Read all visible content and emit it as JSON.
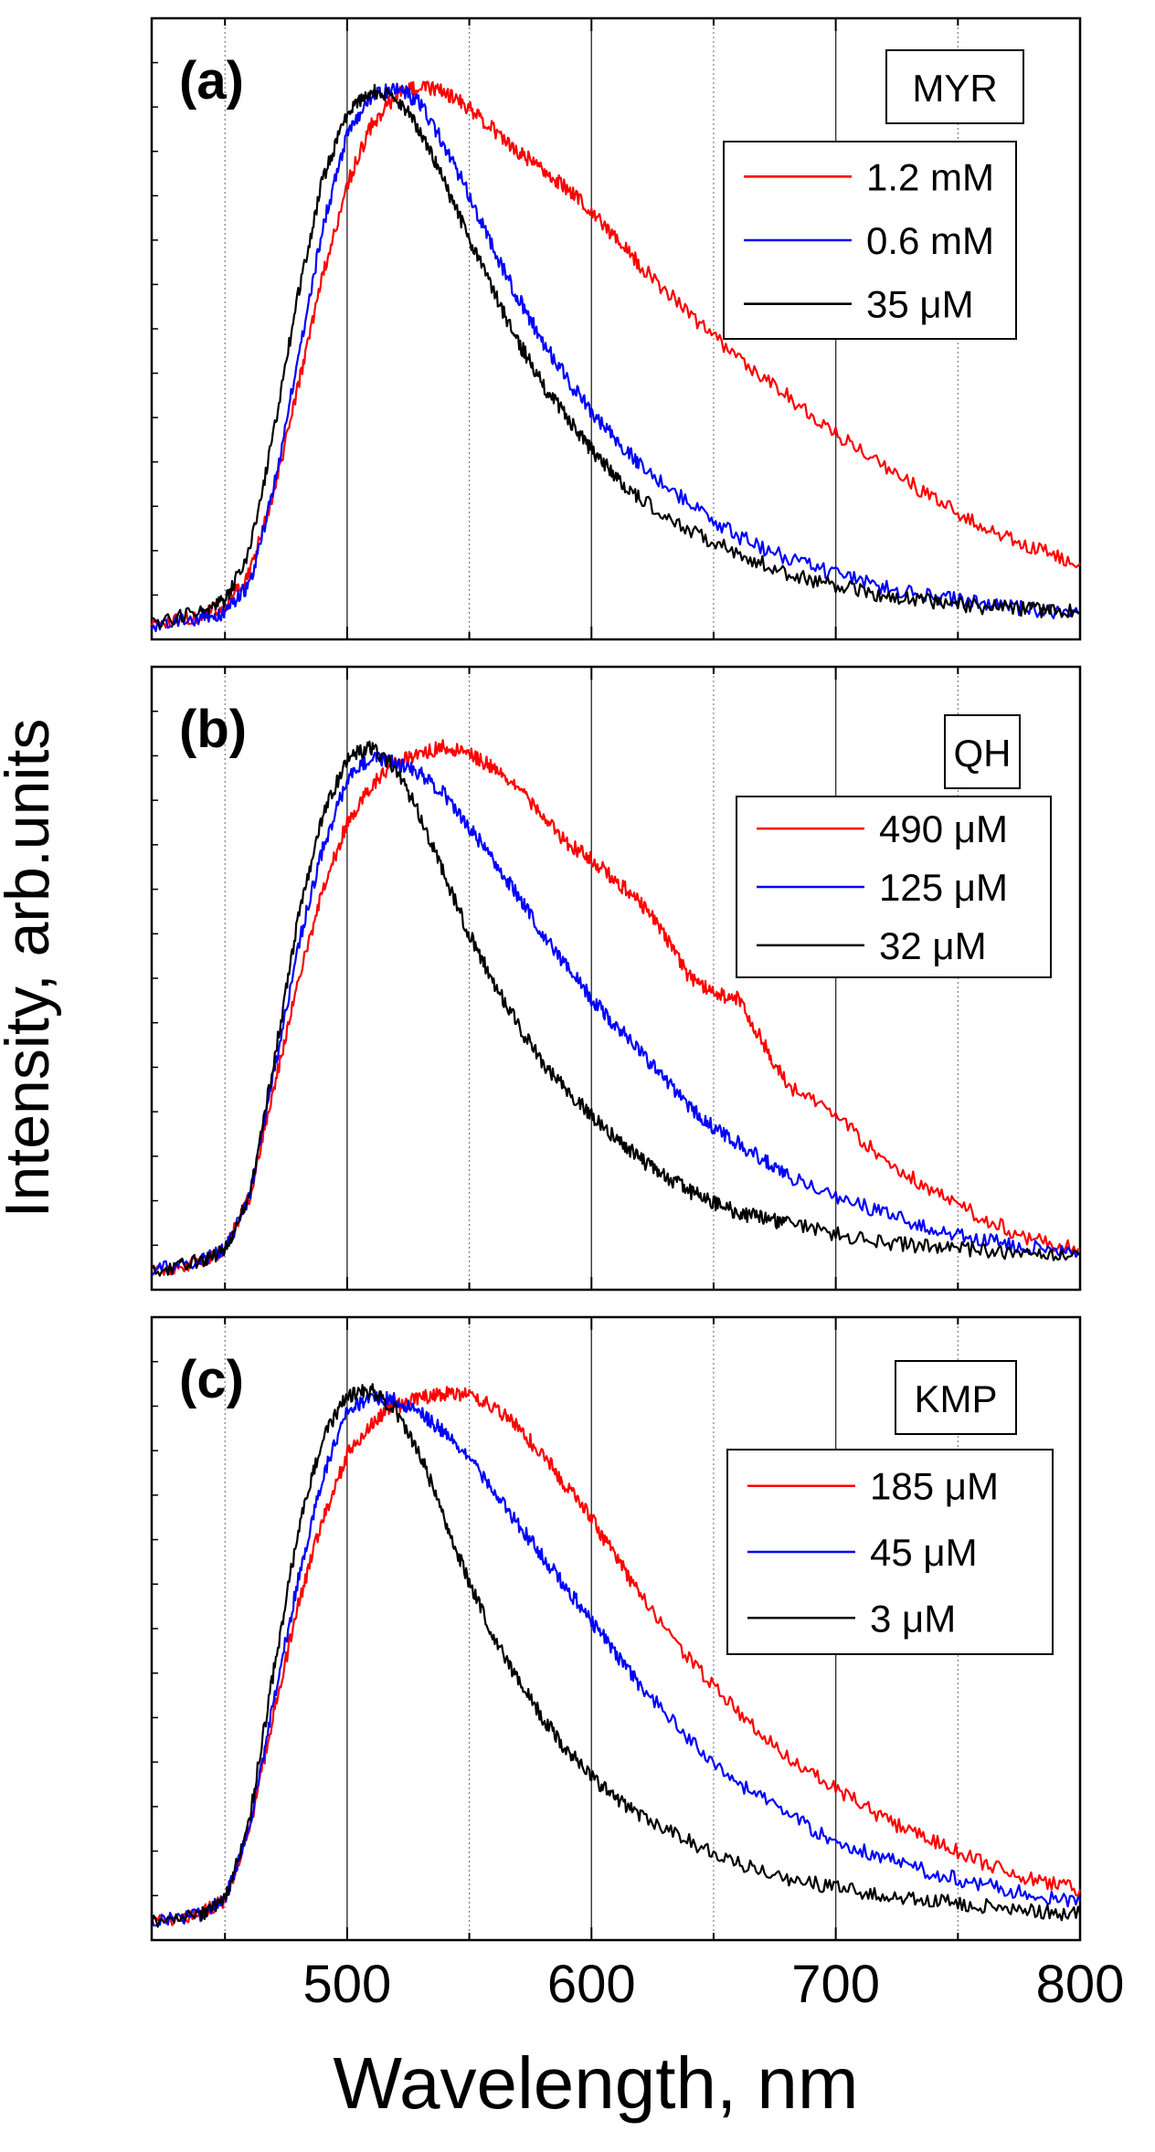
{
  "figure": {
    "ylabel": "Intensity, arb.units",
    "xlabel": "Wavelength, nm"
  },
  "chart_data": [
    {
      "type": "line",
      "panel_label": "(a)",
      "compound": "MYR",
      "xlim": [
        420,
        800
      ],
      "x_ticks": [
        500,
        600,
        700,
        800
      ],
      "grid": "vertical lines at 450, 500, 550, 600, 650, 700, 750",
      "legend_position": "upper-right",
      "x": [
        420,
        440,
        450,
        460,
        470,
        480,
        490,
        500,
        510,
        520,
        530,
        540,
        550,
        560,
        570,
        580,
        590,
        600,
        610,
        620,
        640,
        660,
        680,
        700,
        720,
        740,
        760,
        780,
        800
      ],
      "series": [
        {
          "name": "1.2 mM",
          "color": "#ff0000",
          "values": [
            0.01,
            0.025,
            0.04,
            0.1,
            0.25,
            0.45,
            0.65,
            0.82,
            0.93,
            0.985,
            1.0,
            0.99,
            0.96,
            0.92,
            0.88,
            0.85,
            0.81,
            0.77,
            0.72,
            0.67,
            0.58,
            0.5,
            0.43,
            0.36,
            0.3,
            0.24,
            0.19,
            0.15,
            0.12
          ]
        },
        {
          "name": "0.6 mM",
          "color": "#0000ff",
          "values": [
            0.005,
            0.02,
            0.03,
            0.08,
            0.26,
            0.5,
            0.74,
            0.91,
            0.98,
            1.0,
            0.97,
            0.89,
            0.8,
            0.7,
            0.61,
            0.53,
            0.46,
            0.4,
            0.35,
            0.3,
            0.23,
            0.17,
            0.13,
            0.1,
            0.075,
            0.06,
            0.045,
            0.035,
            0.03
          ]
        },
        {
          "name": "35 μM",
          "color": "#000000",
          "values": [
            0.01,
            0.03,
            0.05,
            0.14,
            0.36,
            0.62,
            0.83,
            0.95,
            0.995,
            0.98,
            0.92,
            0.82,
            0.72,
            0.62,
            0.53,
            0.45,
            0.39,
            0.33,
            0.28,
            0.24,
            0.18,
            0.14,
            0.1,
            0.08,
            0.06,
            0.05,
            0.04,
            0.035,
            0.03
          ]
        }
      ]
    },
    {
      "type": "line",
      "panel_label": "(b)",
      "compound": "QH",
      "xlim": [
        420,
        800
      ],
      "x_ticks": [
        500,
        600,
        700,
        800
      ],
      "grid": "vertical lines at 450, 500, 550, 600, 650, 700, 750",
      "legend_position": "upper-right",
      "x": [
        420,
        440,
        450,
        460,
        470,
        480,
        490,
        500,
        510,
        520,
        530,
        540,
        550,
        560,
        570,
        580,
        590,
        600,
        610,
        620,
        630,
        640,
        650,
        660,
        670,
        680,
        700,
        720,
        740,
        760,
        780,
        800
      ],
      "series": [
        {
          "name": "490 μM",
          "color": "#ff0000",
          "values": [
            0.01,
            0.03,
            0.05,
            0.15,
            0.35,
            0.56,
            0.72,
            0.85,
            0.92,
            0.96,
            0.98,
            0.99,
            0.98,
            0.95,
            0.91,
            0.86,
            0.81,
            0.78,
            0.74,
            0.7,
            0.64,
            0.56,
            0.53,
            0.52,
            0.44,
            0.36,
            0.3,
            0.22,
            0.16,
            0.11,
            0.07,
            0.05
          ]
        },
        {
          "name": "125 μM",
          "color": "#0000ff",
          "values": [
            0.01,
            0.03,
            0.05,
            0.15,
            0.38,
            0.62,
            0.8,
            0.93,
            0.97,
            0.96,
            0.94,
            0.9,
            0.84,
            0.78,
            0.71,
            0.64,
            0.58,
            0.52,
            0.47,
            0.42,
            0.37,
            0.32,
            0.28,
            0.25,
            0.22,
            0.19,
            0.15,
            0.12,
            0.09,
            0.07,
            0.055,
            0.045
          ]
        },
        {
          "name": "32 μM",
          "color": "#000000",
          "values": [
            0.01,
            0.03,
            0.05,
            0.15,
            0.4,
            0.67,
            0.86,
            0.97,
            0.99,
            0.95,
            0.86,
            0.75,
            0.64,
            0.55,
            0.47,
            0.4,
            0.35,
            0.3,
            0.26,
            0.22,
            0.19,
            0.16,
            0.14,
            0.12,
            0.11,
            0.1,
            0.08,
            0.065,
            0.055,
            0.05,
            0.045,
            0.04
          ]
        }
      ]
    },
    {
      "type": "line",
      "panel_label": "(c)",
      "compound": "KMP",
      "xlim": [
        420,
        800
      ],
      "x_ticks": [
        500,
        600,
        700,
        800
      ],
      "grid": "vertical lines at 450, 500, 550, 600, 650, 700, 750",
      "legend_position": "upper-right",
      "x": [
        420,
        440,
        450,
        460,
        470,
        480,
        490,
        500,
        510,
        520,
        530,
        540,
        550,
        560,
        570,
        580,
        590,
        600,
        610,
        620,
        640,
        660,
        680,
        700,
        720,
        740,
        760,
        780,
        800
      ],
      "series": [
        {
          "name": "185 μM",
          "color": "#ff0000",
          "values": [
            0.01,
            0.025,
            0.05,
            0.18,
            0.4,
            0.6,
            0.76,
            0.88,
            0.94,
            0.97,
            0.985,
            0.995,
            0.99,
            0.97,
            0.93,
            0.88,
            0.82,
            0.76,
            0.69,
            0.62,
            0.5,
            0.4,
            0.32,
            0.26,
            0.2,
            0.16,
            0.12,
            0.09,
            0.07
          ]
        },
        {
          "name": "45 μM",
          "color": "#0000ff",
          "values": [
            0.01,
            0.025,
            0.05,
            0.19,
            0.42,
            0.65,
            0.84,
            0.96,
            0.99,
            0.98,
            0.96,
            0.92,
            0.87,
            0.81,
            0.75,
            0.69,
            0.63,
            0.57,
            0.51,
            0.45,
            0.35,
            0.27,
            0.21,
            0.16,
            0.13,
            0.1,
            0.08,
            0.06,
            0.05
          ]
        },
        {
          "name": "3 μM",
          "color": "#000000",
          "values": [
            0.01,
            0.025,
            0.05,
            0.2,
            0.48,
            0.74,
            0.91,
            0.99,
            1.0,
            0.96,
            0.88,
            0.76,
            0.64,
            0.54,
            0.46,
            0.39,
            0.33,
            0.28,
            0.24,
            0.21,
            0.16,
            0.12,
            0.09,
            0.075,
            0.06,
            0.05,
            0.04,
            0.03,
            0.025
          ]
        }
      ]
    }
  ]
}
